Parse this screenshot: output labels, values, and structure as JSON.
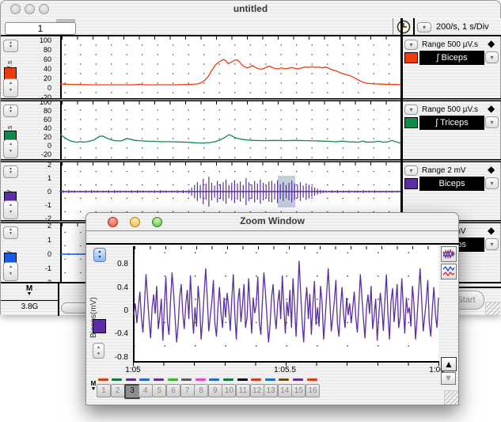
{
  "window": {
    "title": "untitled"
  },
  "toolbar": {
    "page_label": "1",
    "rate_display": "200/s, 1 s/Div"
  },
  "icons": {
    "dropdown": "▾",
    "diamond": "◆",
    "up_arrow": "▲",
    "down_arrow": "▼",
    "stepper_up": "▲",
    "stepper_down": "▼"
  },
  "channels": [
    {
      "range": "Range 500 µV.s",
      "name": "∫ Biceps",
      "unit": "µV.s",
      "color": "#ee3b0d"
    },
    {
      "range": "Range 500 µV.s",
      "name": "∫ Triceps",
      "unit": "µV.s",
      "color": "#0e8a4c"
    },
    {
      "range": "Range 2 mV",
      "name": "Biceps",
      "unit": "mV",
      "color": "#5b2da4"
    },
    {
      "range": "Range 2 mV",
      "name": "Triceps",
      "unit": "mV",
      "color": "#155be8"
    }
  ],
  "bottom_bar": {
    "marker_label": "M",
    "disk_space": "3.8G",
    "start_label": "Start"
  },
  "zoom_window": {
    "title": "Zoom Window",
    "y_label": "Biceps(mV)",
    "marker_label": "M",
    "selected_tab": "3",
    "tabs": [
      {
        "label": "1",
        "color": "#e03a10",
        "selected": false
      },
      {
        "label": "2",
        "color": "#0b7a3e",
        "selected": false
      },
      {
        "label": "3",
        "color": "#5a2d91",
        "selected": true
      },
      {
        "label": "4",
        "color": "#2268d8",
        "selected": false
      },
      {
        "label": "5",
        "color": "#6a2d91",
        "selected": false
      },
      {
        "label": "6",
        "color": "#2eb82e",
        "selected": false
      },
      {
        "label": "7",
        "color": "#5a5a5a",
        "selected": false
      },
      {
        "label": "8",
        "color": "#ee3fd1",
        "selected": false
      },
      {
        "label": "9",
        "color": "#2268d8",
        "selected": false
      },
      {
        "label": "10",
        "color": "#0b7a3e",
        "selected": false
      },
      {
        "label": "11",
        "color": "#000000",
        "selected": false
      },
      {
        "label": "12",
        "color": "#e03a10",
        "selected": false
      },
      {
        "label": "13",
        "color": "#2268d8",
        "selected": false
      },
      {
        "label": "14",
        "color": "#6b4d12",
        "selected": false
      },
      {
        "label": "15",
        "color": "#6a2d91",
        "selected": false
      },
      {
        "label": "16",
        "color": "#e03a10",
        "selected": false
      }
    ]
  },
  "chart_data": [
    {
      "id": "int_biceps",
      "type": "line",
      "title": "∫ Biceps",
      "ylabel": "µV.s",
      "color": "#ee3b0d",
      "yticks": [
        100,
        80,
        60,
        40,
        20,
        0,
        -20
      ],
      "ylim": [
        -25,
        105
      ],
      "points": [
        [
          0,
          8
        ],
        [
          0.03,
          7.5
        ],
        [
          0.06,
          7
        ],
        [
          0.1,
          6.5
        ],
        [
          0.14,
          6.5
        ],
        [
          0.18,
          6.5
        ],
        [
          0.21,
          6.5
        ],
        [
          0.235,
          7.5
        ],
        [
          0.25,
          6.5
        ],
        [
          0.3,
          6.5
        ],
        [
          0.34,
          6.5
        ],
        [
          0.37,
          7
        ],
        [
          0.39,
          7.5
        ],
        [
          0.405,
          8.5
        ],
        [
          0.415,
          11
        ],
        [
          0.425,
          16
        ],
        [
          0.435,
          24
        ],
        [
          0.445,
          36
        ],
        [
          0.455,
          47
        ],
        [
          0.465,
          54
        ],
        [
          0.475,
          58
        ],
        [
          0.48,
          60
        ],
        [
          0.487,
          57
        ],
        [
          0.493,
          51
        ],
        [
          0.5,
          53
        ],
        [
          0.507,
          56
        ],
        [
          0.513,
          58
        ],
        [
          0.52,
          59
        ],
        [
          0.527,
          55
        ],
        [
          0.533,
          49
        ],
        [
          0.54,
          45
        ],
        [
          0.55,
          42
        ],
        [
          0.557,
          44
        ],
        [
          0.565,
          47
        ],
        [
          0.572,
          44
        ],
        [
          0.58,
          41
        ],
        [
          0.59,
          39
        ],
        [
          0.6,
          41
        ],
        [
          0.607,
          44
        ],
        [
          0.613,
          46
        ],
        [
          0.62,
          44
        ],
        [
          0.63,
          41
        ],
        [
          0.64,
          40
        ],
        [
          0.65,
          42
        ],
        [
          0.66,
          40
        ],
        [
          0.67,
          41
        ],
        [
          0.68,
          43
        ],
        [
          0.69,
          41
        ],
        [
          0.7,
          40
        ],
        [
          0.71,
          42
        ],
        [
          0.72,
          44
        ],
        [
          0.73,
          43
        ],
        [
          0.74,
          45
        ],
        [
          0.75,
          43
        ],
        [
          0.76,
          44
        ],
        [
          0.77,
          42
        ],
        [
          0.78,
          44
        ],
        [
          0.79,
          41
        ],
        [
          0.8,
          38
        ],
        [
          0.81,
          36
        ],
        [
          0.82,
          33
        ],
        [
          0.83,
          30
        ],
        [
          0.84,
          28
        ],
        [
          0.85,
          26
        ],
        [
          0.86,
          23
        ],
        [
          0.87,
          19
        ],
        [
          0.88,
          15
        ],
        [
          0.89,
          12
        ],
        [
          0.9,
          10
        ],
        [
          0.92,
          8.5
        ],
        [
          0.94,
          8
        ],
        [
          0.96,
          7.5
        ],
        [
          1,
          7
        ]
      ]
    },
    {
      "id": "int_triceps",
      "type": "line",
      "title": "∫ Triceps",
      "ylabel": "µV.s",
      "color": "#0e8a4c",
      "yticks": [
        100,
        80,
        60,
        40,
        20,
        0,
        -20
      ],
      "ylim": [
        -25,
        105
      ],
      "points": [
        [
          0,
          26
        ],
        [
          0.01,
          20
        ],
        [
          0.02,
          15
        ],
        [
          0.03,
          11
        ],
        [
          0.04,
          9
        ],
        [
          0.05,
          8
        ],
        [
          0.06,
          9.5
        ],
        [
          0.065,
          8
        ],
        [
          0.08,
          9
        ],
        [
          0.1,
          13
        ],
        [
          0.115,
          21
        ],
        [
          0.125,
          22
        ],
        [
          0.135,
          18
        ],
        [
          0.15,
          13
        ],
        [
          0.165,
          11
        ],
        [
          0.18,
          11
        ],
        [
          0.195,
          16
        ],
        [
          0.205,
          15
        ],
        [
          0.22,
          12
        ],
        [
          0.24,
          11
        ],
        [
          0.26,
          10
        ],
        [
          0.28,
          10
        ],
        [
          0.3,
          9
        ],
        [
          0.32,
          9
        ],
        [
          0.35,
          8.5
        ],
        [
          0.38,
          7.5
        ],
        [
          0.4,
          6.5
        ],
        [
          0.42,
          6
        ],
        [
          0.44,
          7
        ],
        [
          0.455,
          9
        ],
        [
          0.47,
          13
        ],
        [
          0.48,
          17
        ],
        [
          0.49,
          22
        ],
        [
          0.497,
          25
        ],
        [
          0.505,
          22
        ],
        [
          0.515,
          18
        ],
        [
          0.53,
          15
        ],
        [
          0.55,
          13
        ],
        [
          0.57,
          12
        ],
        [
          0.6,
          11.5
        ],
        [
          0.63,
          12
        ],
        [
          0.66,
          11.5
        ],
        [
          0.69,
          12
        ],
        [
          0.72,
          11.5
        ],
        [
          0.75,
          11
        ],
        [
          0.77,
          10.5
        ],
        [
          0.79,
          10
        ],
        [
          0.81,
          9
        ],
        [
          0.83,
          10.5
        ],
        [
          0.845,
          9
        ],
        [
          0.86,
          8.5
        ],
        [
          0.875,
          8
        ],
        [
          0.89,
          10.5
        ],
        [
          0.9,
          8
        ],
        [
          0.92,
          8.5
        ],
        [
          0.935,
          10
        ],
        [
          0.95,
          8
        ],
        [
          0.965,
          9
        ],
        [
          0.975,
          12
        ],
        [
          0.985,
          9
        ],
        [
          1,
          6
        ]
      ]
    },
    {
      "id": "biceps_emg",
      "type": "emg",
      "title": "Biceps",
      "ylabel": "mV",
      "color": "#5b2da4",
      "yticks": [
        2,
        1,
        0,
        -1,
        -2
      ],
      "ylim": [
        -2,
        2
      ],
      "selection": [
        0.64,
        0.69
      ],
      "amps": [
        0.06,
        0.1,
        0.05,
        0.12,
        0.07,
        0.09,
        0.04,
        0.08,
        0.06,
        0.1,
        0.05,
        0.12,
        0.07,
        0.09,
        0.04,
        0.08,
        0.06,
        0.1,
        0.05,
        0.12,
        0.07,
        0.09,
        0.04,
        0.08,
        0.06,
        0.1,
        0.05,
        0.12,
        0.07,
        0.09,
        0.04,
        0.08,
        0.06,
        0.1,
        0.05,
        0.12,
        0.07,
        0.09,
        0.04,
        0.08,
        0.06,
        0.1,
        0.05,
        0.12,
        0.07,
        0.15,
        0.3,
        0.5,
        0.7,
        0.5,
        0.95,
        0.6,
        1.1,
        0.65,
        0.45,
        0.8,
        0.55,
        0.7,
        0.9,
        0.5,
        0.65,
        0.85,
        0.6,
        0.75,
        0.5,
        1.0,
        0.7,
        0.55,
        0.8,
        0.6,
        0.9,
        0.65,
        0.5,
        0.75,
        0.8,
        0.6,
        0.85,
        0.55,
        0.7,
        0.5,
        0.65,
        0.8,
        0.6,
        0.5,
        0.7,
        0.45,
        0.62,
        0.52,
        0.4,
        0.3,
        0.22,
        0.15,
        0.1,
        0.08,
        0.05,
        0.1,
        0.06,
        0.12,
        0.05,
        0.08,
        0.06,
        0.1,
        0.05,
        0.07,
        0.09,
        0.05,
        0.11,
        0.06,
        0.08,
        0.05,
        0.1,
        0.06,
        0.07,
        0.05,
        0.09,
        0.06,
        0.08,
        0.05,
        0.07,
        0.06
      ]
    },
    {
      "id": "triceps_emg",
      "type": "emg",
      "title": "Triceps",
      "ylabel": "mV",
      "color": "#155be8",
      "yticks": [
        2,
        1,
        0,
        -1,
        -2
      ],
      "ylim": [
        -2,
        2
      ],
      "amps": [
        0.04,
        0.07,
        0.05,
        0.08,
        0.04,
        0.06,
        0.05,
        0.09,
        0.04,
        0.06,
        0.05,
        0.07,
        0.04,
        0.08,
        0.05,
        0.06,
        0.04,
        0.07,
        0.05,
        0.06,
        0.05,
        0.08,
        0.04,
        0.06,
        0.05,
        0.07,
        0.04,
        0.06,
        0.05,
        0.08,
        0.04,
        0.06,
        0.05,
        0.07,
        0.04,
        0.06,
        0.05,
        0.07,
        0.04,
        0.06
      ]
    },
    {
      "id": "zoom_trace",
      "type": "line",
      "title": "Biceps(mV)",
      "ylabel": "Biceps(mV)",
      "color": "#5b2da4",
      "yticks": [
        0.8,
        0.4,
        0,
        -0.4,
        -0.8
      ],
      "ylim": [
        -0.87,
        1.1
      ],
      "xticks": [
        "1:05",
        "1:05.5",
        "1:06"
      ],
      "values": [
        -0.08,
        0.12,
        -0.22,
        0.05,
        0.32,
        -0.12,
        -0.38,
        0.1,
        0.62,
        0.22,
        -0.15,
        -0.48,
        0.05,
        0.27,
        -0.06,
        0.42,
        -0.32,
        -0.1,
        0.2,
        -0.52,
        0.1,
        0.58,
        -0.2,
        -0.42,
        0.15,
        0.65,
        0.3,
        -0.12,
        -0.55,
        -0.25,
        0.22,
        0.45,
        -0.05,
        -0.32,
        0.12,
        0.35,
        -0.15,
        0.6,
        0.05,
        -0.4,
        0.05,
        -0.28,
        0.42,
        0.12,
        -0.5,
        -0.15,
        0.3,
        0.72,
        0.2,
        -0.36,
        -0.1,
        0.15,
        0.52,
        -0.22,
        -0.45,
        0.05,
        0.4,
        -0.06,
        -0.3,
        0.22,
        -0.12,
        0.3,
        0.05,
        -0.35,
        0.18,
        0.62,
        -0.08,
        -0.5,
        0.15,
        0.38,
        -0.2,
        0.1,
        0.45,
        -0.3,
        -0.12,
        0.55,
        0.08,
        -0.4,
        0.22,
        -0.05,
        0.1,
        0.58,
        -0.2,
        -0.42,
        0.15,
        0.65,
        0.3,
        -0.12,
        -0.55,
        -0.25,
        0.22,
        0.45,
        -0.05,
        -0.32,
        0.12,
        0.35,
        -0.15,
        0.6,
        0.05,
        -0.4,
        0.15,
        -0.1,
        0.35,
        -0.3,
        0.55,
        0.1,
        -0.45,
        0.2,
        0.85,
        0.3,
        -0.2,
        -0.55,
        0.1,
        0.4,
        -0.15,
        0.28,
        -0.42,
        0.12,
        0.5,
        -0.25,
        0.05,
        -0.28,
        0.42,
        0.12,
        -0.5,
        -0.15,
        0.3,
        0.72,
        0.2,
        -0.36,
        -0.1,
        0.15,
        0.52,
        -0.22,
        -0.45,
        0.05,
        0.4,
        -0.06,
        -0.3,
        0.22,
        -0.08,
        0.12,
        -0.22,
        0.05,
        0.32,
        -0.12,
        -0.38,
        0.1,
        0.62,
        0.22,
        -0.15,
        -0.48,
        0.05,
        0.27,
        -0.06,
        0.42,
        -0.32,
        -0.1,
        0.2,
        -0.52,
        -0.12,
        0.3,
        0.05,
        -0.35,
        0.18,
        0.62,
        -0.08,
        -0.5,
        0.15,
        0.38,
        -0.2,
        0.1,
        0.45,
        -0.3,
        -0.12,
        0.55,
        0.08,
        -0.4,
        0.22,
        -0.05,
        0.05,
        -0.28,
        0.42,
        0.12,
        -0.5,
        -0.15,
        0.3,
        0.72,
        0.2,
        -0.36,
        -0.1,
        0.15,
        0.52,
        -0.22,
        -0.45,
        0.05,
        0.4,
        -0.06,
        -0.3,
        0.22
      ]
    }
  ]
}
